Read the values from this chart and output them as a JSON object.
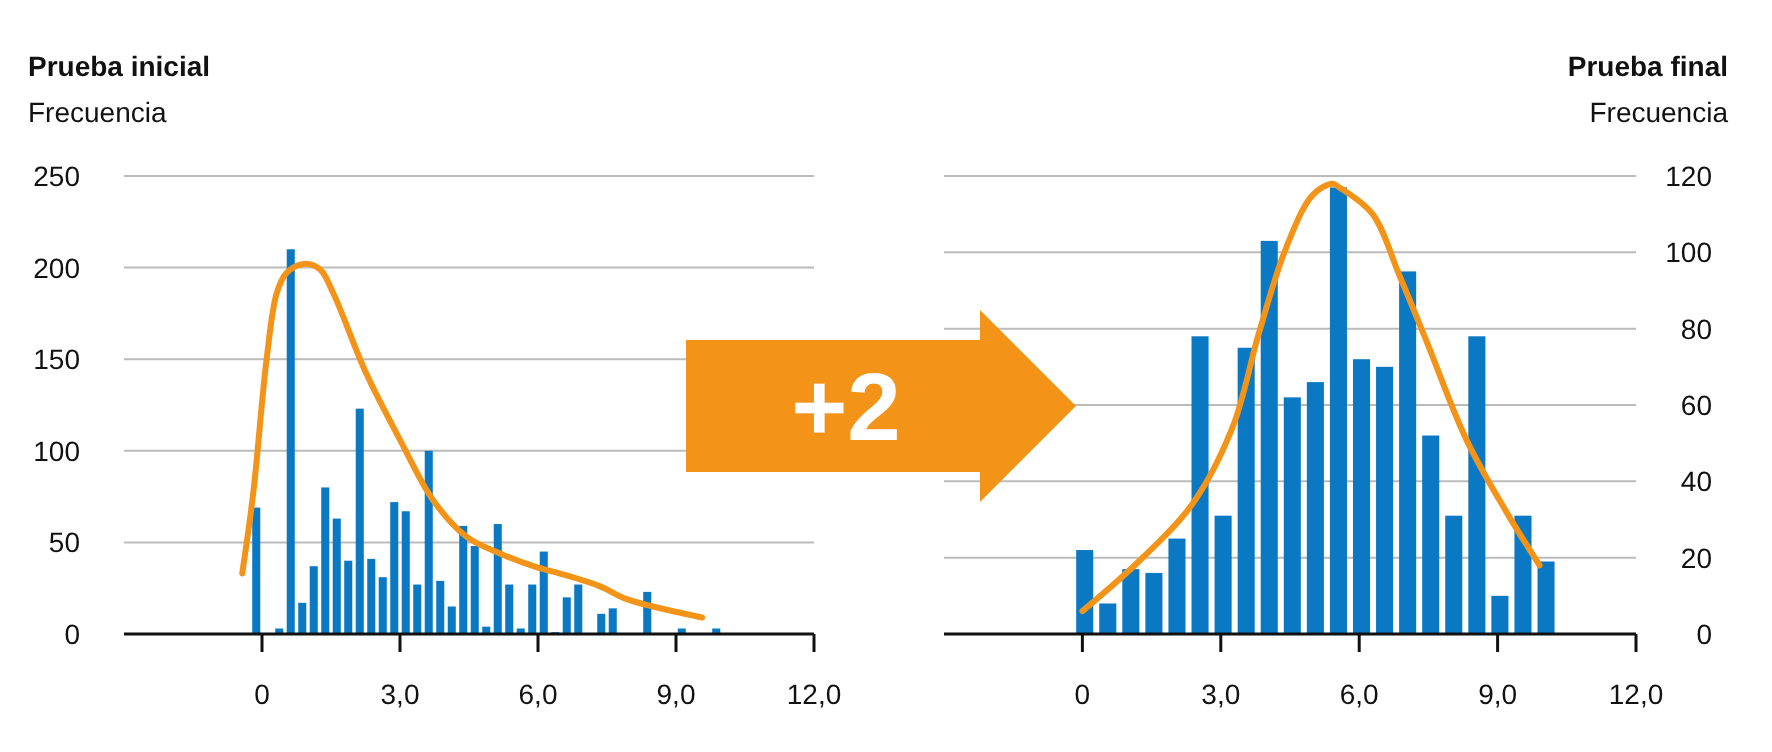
{
  "chart_data": [
    {
      "type": "histogram",
      "title": "Prueba inicial",
      "ylabel": "Frecuencia",
      "annotations": [
        "+2"
      ],
      "bins": [
        -0.25,
        0,
        0.25,
        0.5,
        0.75,
        1,
        1.25,
        1.5,
        1.75,
        2,
        2.25,
        2.5,
        2.75,
        3,
        3.25,
        3.5,
        3.75,
        4,
        4.25,
        4.5,
        4.75,
        5,
        5.25,
        5.5,
        5.75,
        6,
        6.25,
        6.5,
        6.75,
        7,
        7.25,
        7.5,
        7.75,
        8,
        8.25,
        8.5,
        8.75,
        9,
        9.25,
        9.5,
        9.75,
        10
      ],
      "values": [
        69,
        0,
        3,
        210,
        17,
        37,
        80,
        63,
        40,
        123,
        41,
        31,
        72,
        67,
        27,
        100,
        29,
        15,
        59,
        48,
        4,
        60,
        27,
        3,
        27,
        45,
        1,
        20,
        27,
        0,
        11,
        14,
        0,
        0,
        23,
        0,
        0,
        3,
        0,
        0,
        3
      ],
      "color": "#0a78c2",
      "series": [
        {
          "type": "line",
          "color": "#f39419",
          "x": [
            -0.43,
            -0.19,
            0.1,
            0.32,
            0.53,
            0.9,
            1.26,
            1.55,
            2.27,
            3.0,
            3.72,
            4.45,
            5.17,
            5.9,
            6.48,
            7.35,
            7.93,
            9.57
          ],
          "values": [
            33,
            77,
            150,
            186,
            197,
            202,
            199,
            186,
            142,
            106,
            73,
            53,
            44,
            37,
            33,
            26,
            19,
            9
          ]
        }
      ],
      "xlim": [
        -3,
        12
      ],
      "xticks": [
        0,
        {
          "value": 3,
          "label": "3,0"
        },
        {
          "value": 6,
          "label": "6,0"
        },
        {
          "value": 9,
          "label": "9,0"
        },
        {
          "value": 12,
          "label": "12,0"
        }
      ],
      "ylim": [
        0,
        250
      ],
      "yticks": [
        0,
        50,
        100,
        150,
        200,
        250
      ],
      "grid": "y"
    },
    {
      "type": "histogram",
      "title": "Prueba final",
      "ylabel": "Frecuencia",
      "bins": [
        -0.2,
        0.3,
        0.8,
        1.3,
        1.8,
        2.3,
        2.8,
        3.3,
        3.8,
        4.3,
        4.8,
        5.3,
        5.8,
        6.3,
        6.8,
        7.3,
        7.8,
        8.3,
        8.8,
        9.3,
        9.8,
        10.3
      ],
      "values": [
        22,
        8,
        17,
        16,
        25,
        78,
        31,
        75,
        103,
        62,
        66,
        117,
        72,
        70,
        95,
        52,
        31,
        78,
        10,
        31,
        19
      ],
      "color": "#0a78c2",
      "series": [
        {
          "type": "line",
          "color": "#f39419",
          "x": [
            0,
            1.22,
            2.38,
            3.25,
            3.83,
            4.41,
            4.99,
            5.42,
            5.57,
            6.29,
            6.87,
            7.45,
            8.32,
            9.19,
            9.91
          ],
          "values": [
            6,
            19,
            34,
            54,
            79,
            101,
            115,
            118,
            117,
            110,
            94,
            77,
            51,
            32,
            18
          ]
        }
      ],
      "xlim": [
        -3,
        12
      ],
      "xticks": [
        0,
        {
          "value": 3,
          "label": "3,0"
        },
        {
          "value": 6,
          "label": "6,0"
        },
        {
          "value": 9,
          "label": "9,0"
        },
        {
          "value": 12,
          "label": "12,0"
        }
      ],
      "ylim": [
        0,
        120
      ],
      "yticks": [
        0,
        20,
        40,
        60,
        80,
        100,
        120
      ],
      "grid": "y"
    }
  ]
}
